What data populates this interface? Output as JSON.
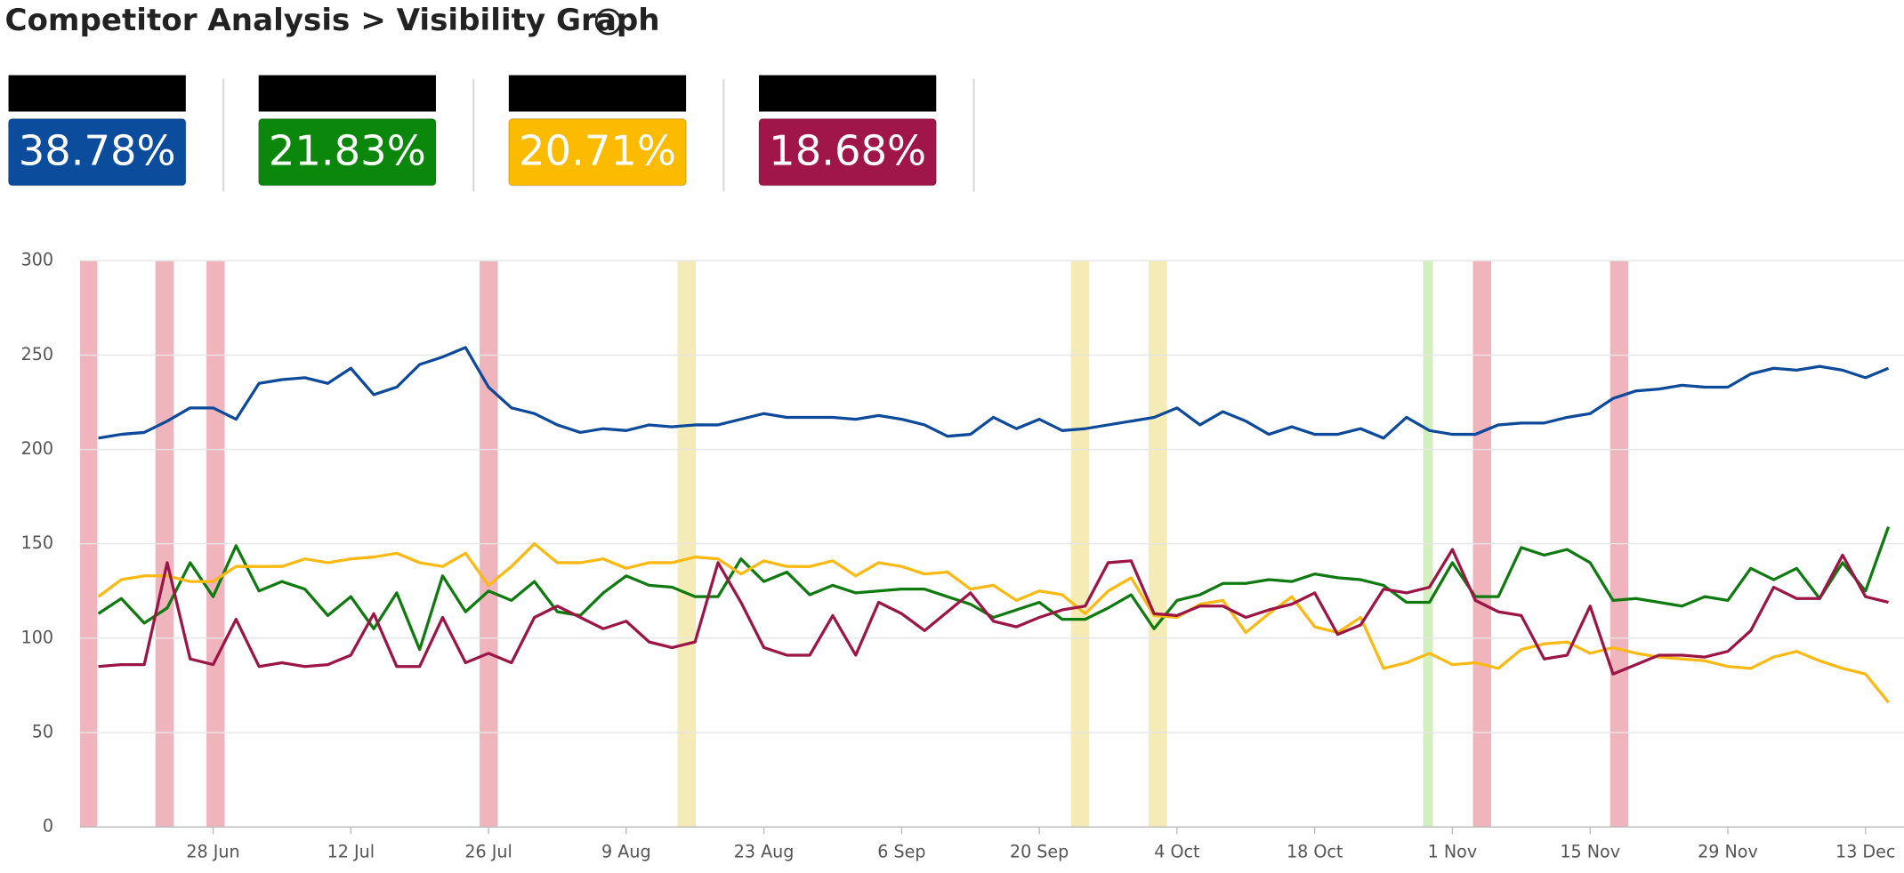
{
  "header": {
    "title": "Competitor Analysis > Visibility Graph"
  },
  "cards": [
    {
      "value": "38.78%",
      "color": "#0b4c9c"
    },
    {
      "value": "21.83%",
      "color": "#0b870b"
    },
    {
      "value": "20.71%",
      "color": "#fdbb00"
    },
    {
      "value": "18.68%",
      "color": "#a0154a"
    }
  ],
  "chart_data": {
    "type": "line",
    "categories": [
      null,
      null,
      null,
      null,
      null,
      "28 Jun",
      null,
      null,
      null,
      null,
      null,
      "12 Jul",
      null,
      null,
      null,
      null,
      null,
      "26 Jul",
      null,
      null,
      null,
      null,
      null,
      "9 Aug",
      null,
      null,
      null,
      null,
      null,
      "23 Aug",
      null,
      null,
      null,
      null,
      null,
      "6 Sep",
      null,
      null,
      null,
      null,
      null,
      "20 Sep",
      null,
      null,
      null,
      null,
      null,
      "4 Oct",
      null,
      null,
      null,
      null,
      null,
      "18 Oct",
      null,
      null,
      null,
      null,
      null,
      "1 Nov",
      null,
      null,
      null,
      null,
      null,
      "15 Nov",
      null,
      null,
      null,
      null,
      null,
      "29 Nov",
      null,
      null,
      null,
      null,
      null,
      "13 Dec",
      null
    ],
    "ylim": [
      0,
      300
    ],
    "yticks": [
      0,
      50,
      100,
      150,
      200,
      250,
      300
    ],
    "grid": true,
    "series": [
      {
        "color": "#0d4a9a",
        "values": [
          206,
          208,
          209,
          215,
          222,
          222,
          216,
          235,
          237,
          238,
          235,
          243,
          229,
          233,
          245,
          249,
          254,
          233,
          222,
          219,
          213,
          209,
          211,
          210,
          213,
          212,
          213,
          213,
          216,
          219,
          217,
          217,
          217,
          216,
          218,
          216,
          213,
          207,
          208,
          217,
          211,
          216,
          210,
          211,
          213,
          215,
          217,
          222,
          213,
          220,
          215,
          208,
          212,
          208,
          208,
          211,
          206,
          217,
          210,
          208,
          208,
          213,
          214,
          214,
          217,
          219,
          227,
          231,
          232,
          234,
          233,
          233,
          240,
          243,
          242,
          244,
          242,
          238,
          243
        ]
      },
      {
        "color": "#0f7a0f",
        "values": [
          113,
          121,
          108,
          116,
          140,
          122,
          149,
          125,
          130,
          126,
          112,
          122,
          105,
          124,
          94,
          133,
          114,
          125,
          120,
          130,
          114,
          112,
          124,
          133,
          128,
          127,
          122,
          122,
          142,
          130,
          135,
          123,
          128,
          124,
          125,
          126,
          126,
          122,
          118,
          111,
          115,
          119,
          110,
          110,
          116,
          123,
          105,
          120,
          123,
          129,
          129,
          131,
          130,
          134,
          132,
          131,
          128,
          119,
          119,
          140,
          122,
          122,
          148,
          144,
          147,
          140,
          120,
          121,
          119,
          117,
          122,
          120,
          137,
          131,
          137,
          121,
          140,
          125,
          159
        ]
      },
      {
        "color": "#fbb914",
        "values": [
          122,
          131,
          133,
          133,
          130,
          130,
          138,
          138,
          138,
          142,
          140,
          142,
          143,
          145,
          140,
          138,
          145,
          128,
          138,
          150,
          140,
          140,
          142,
          137,
          140,
          140,
          143,
          142,
          134,
          141,
          138,
          138,
          141,
          133,
          140,
          138,
          134,
          135,
          126,
          128,
          120,
          125,
          123,
          113,
          125,
          132,
          112,
          111,
          118,
          120,
          103,
          113,
          122,
          106,
          103,
          111,
          84,
          87,
          92,
          86,
          87,
          84,
          94,
          97,
          98,
          92,
          95,
          92,
          90,
          89,
          88,
          85,
          84,
          90,
          93,
          88,
          84,
          81,
          66
        ]
      },
      {
        "color": "#9b1646",
        "values": [
          85,
          86,
          86,
          140,
          89,
          86,
          110,
          85,
          87,
          85,
          86,
          91,
          113,
          85,
          85,
          111,
          87,
          92,
          87,
          111,
          117,
          111,
          105,
          109,
          98,
          95,
          98,
          140,
          119,
          95,
          91,
          91,
          112,
          91,
          119,
          113,
          104,
          114,
          124,
          109,
          106,
          111,
          115,
          117,
          140,
          141,
          113,
          112,
          117,
          117,
          111,
          115,
          118,
          124,
          102,
          107,
          126,
          124,
          127,
          147,
          120,
          114,
          112,
          89,
          91,
          117,
          81,
          86,
          91,
          91,
          90,
          93,
          104,
          127,
          121,
          121,
          144,
          122,
          119
        ]
      }
    ]
  }
}
